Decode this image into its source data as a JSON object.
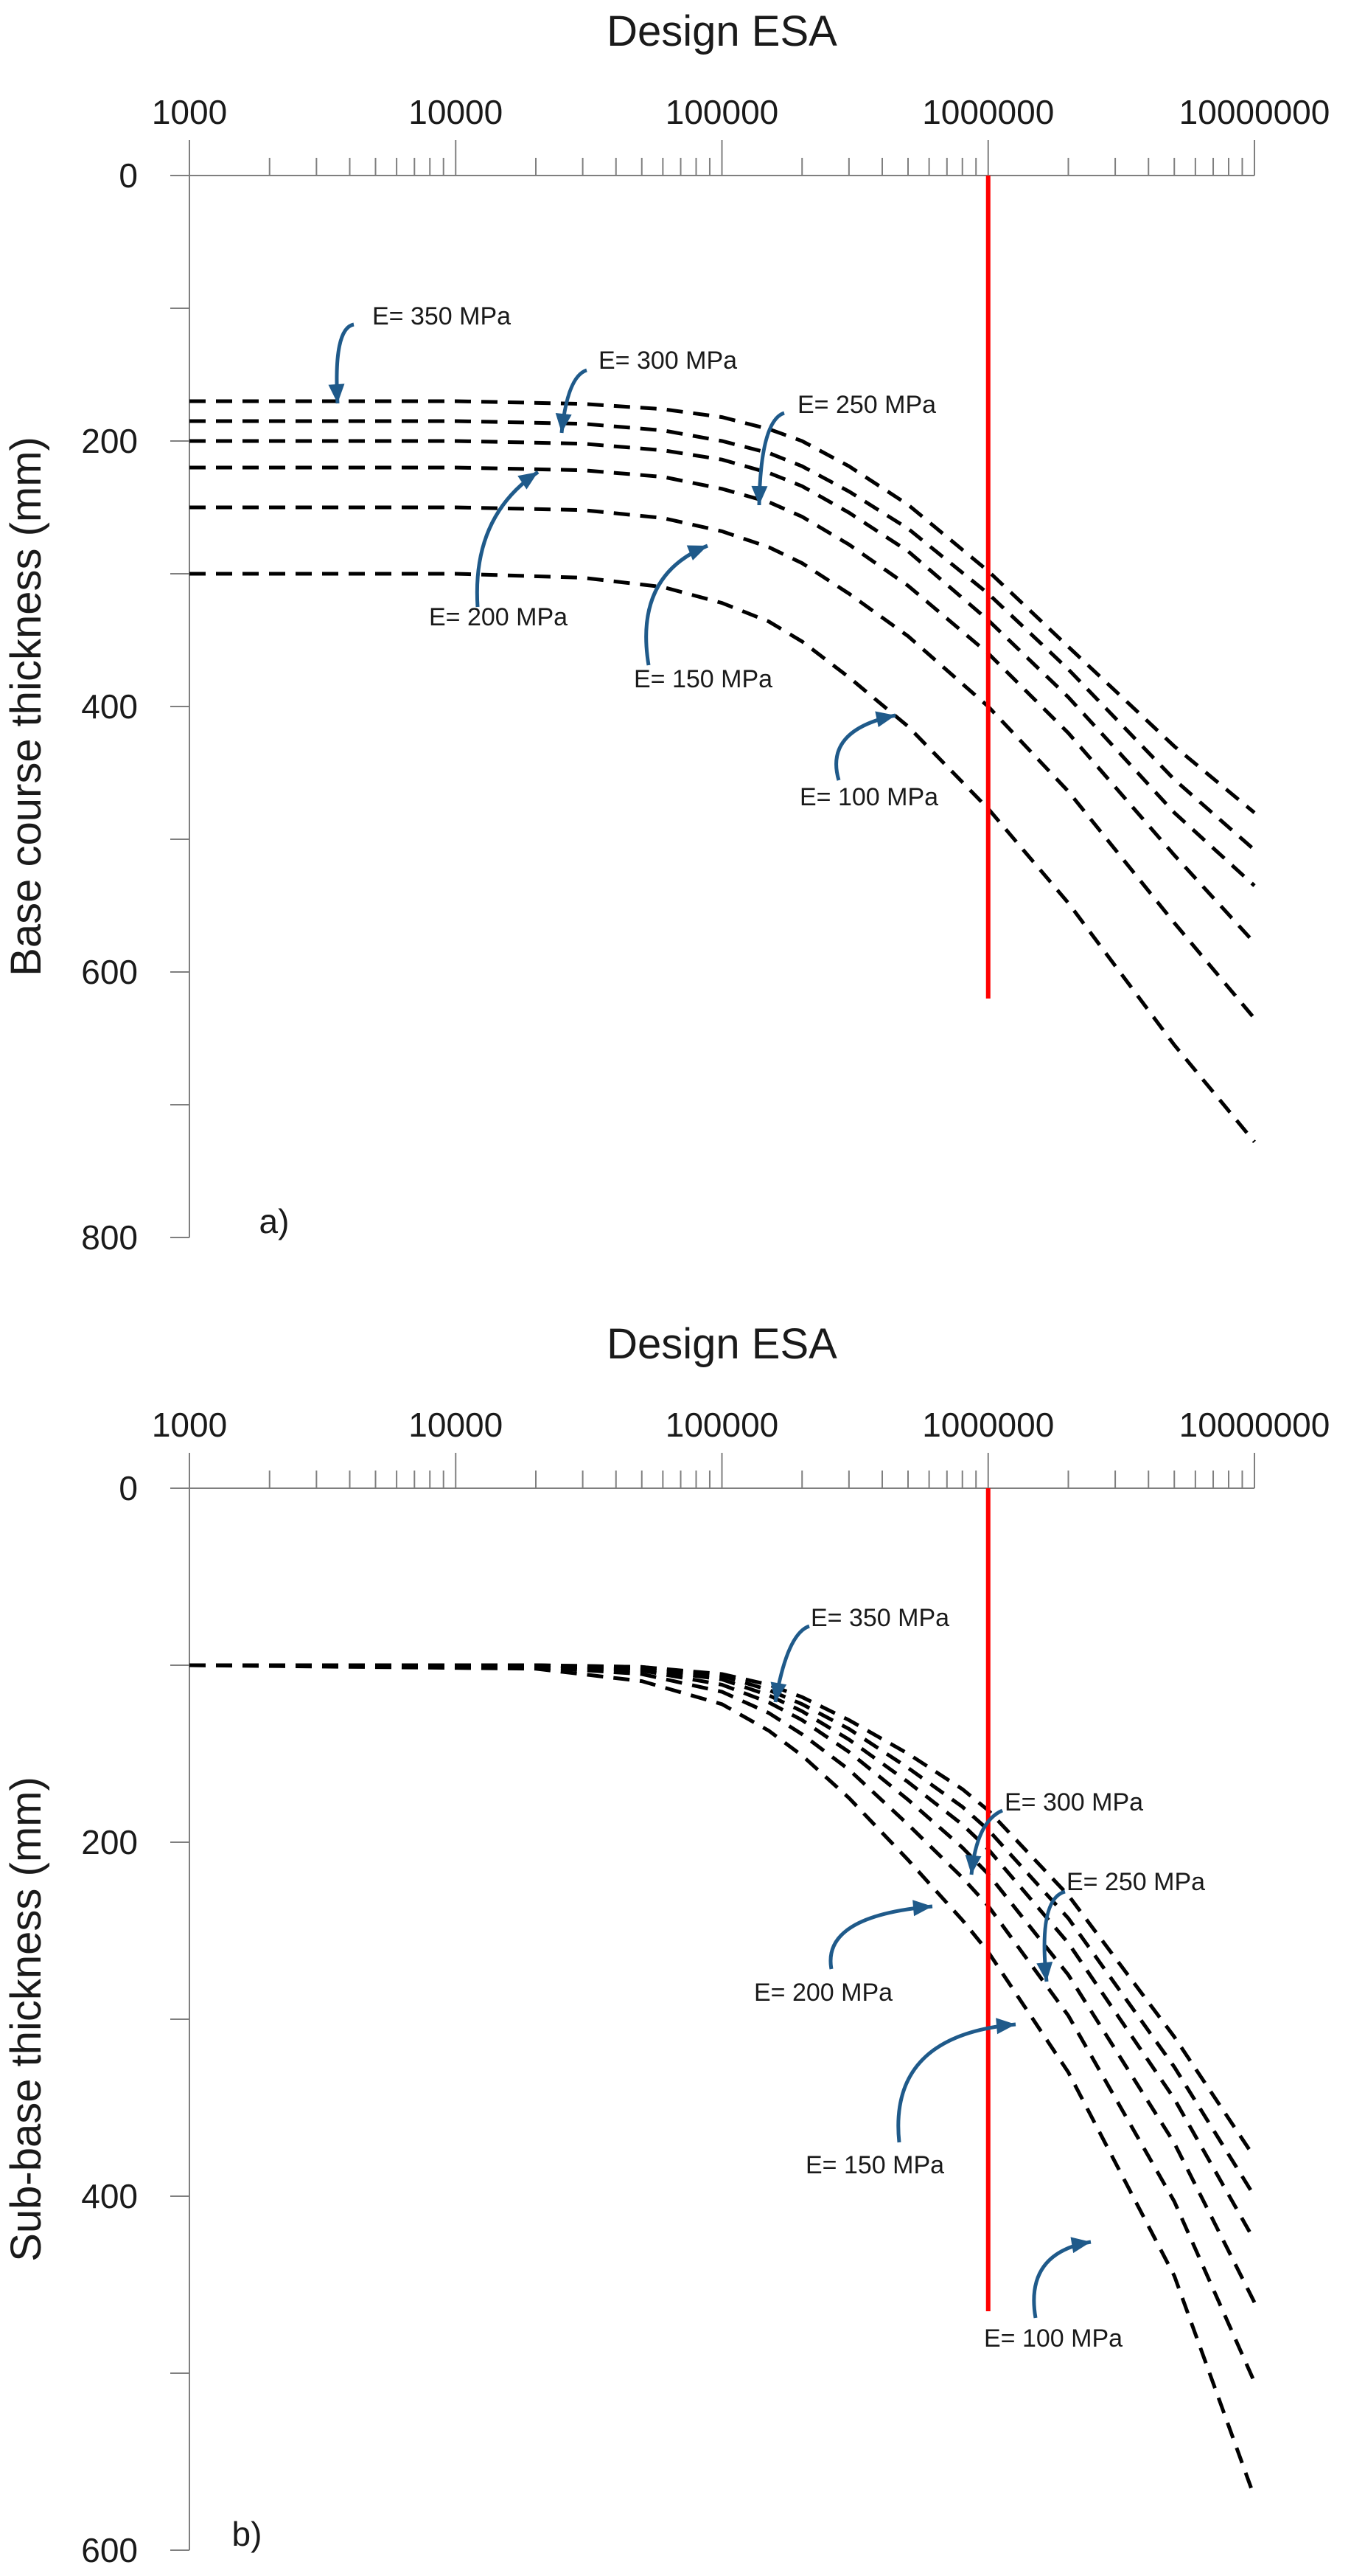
{
  "chart_data": [
    {
      "type": "line",
      "panel_label": "a)",
      "title": "Design ESA",
      "xlabel": "Design ESA",
      "ylabel": "Base course thickness (mm)",
      "x_scale": "log",
      "xlim": [
        1000,
        10000000
      ],
      "ylim": [
        0,
        800
      ],
      "y_inverted": true,
      "x_tick_labels": [
        "1000",
        "10000",
        "100000",
        "1000000",
        "10000000"
      ],
      "x_tick_values": [
        1000,
        10000,
        100000,
        1000000,
        10000000
      ],
      "y_tick_labels": [
        "0",
        "200",
        "400",
        "600",
        "800"
      ],
      "y_tick_values": [
        0,
        200,
        400,
        600,
        800
      ],
      "reference_line": {
        "x": 1000000,
        "y_range": [
          0,
          620
        ],
        "color": "#ff0000"
      },
      "series": [
        {
          "name": "E= 350 MPa",
          "x": [
            1000,
            10000,
            30000,
            60000,
            100000,
            150000,
            200000,
            300000,
            500000,
            1000000,
            2000000,
            5000000,
            10000000
          ],
          "y": [
            170,
            170,
            172,
            176,
            182,
            191,
            200,
            219,
            248,
            298,
            355,
            430,
            480
          ]
        },
        {
          "name": "E= 300 MPa",
          "x": [
            1000,
            10000,
            30000,
            60000,
            100000,
            150000,
            200000,
            300000,
            500000,
            1000000,
            2000000,
            5000000,
            10000000
          ],
          "y": [
            185,
            185,
            187,
            192,
            200,
            209,
            219,
            238,
            266,
            315,
            372,
            455,
            508
          ]
        },
        {
          "name": "E= 250 MPa",
          "x": [
            1000,
            10000,
            30000,
            60000,
            100000,
            150000,
            200000,
            300000,
            500000,
            1000000,
            2000000,
            5000000,
            10000000
          ],
          "y": [
            200,
            200,
            202,
            207,
            214,
            224,
            234,
            254,
            283,
            335,
            393,
            480,
            535
          ]
        },
        {
          "name": "E= 200 MPa",
          "x": [
            1000,
            10000,
            30000,
            60000,
            100000,
            150000,
            200000,
            300000,
            500000,
            1000000,
            2000000,
            5000000,
            10000000
          ],
          "y": [
            220,
            220,
            222,
            227,
            236,
            246,
            257,
            278,
            309,
            360,
            420,
            512,
            578
          ]
        },
        {
          "name": "E= 150 MPa",
          "x": [
            1000,
            10000,
            30000,
            60000,
            100000,
            150000,
            200000,
            300000,
            500000,
            1000000,
            2000000,
            5000000,
            10000000
          ],
          "y": [
            250,
            250,
            252,
            258,
            268,
            280,
            292,
            315,
            347,
            400,
            464,
            563,
            635
          ]
        },
        {
          "name": "E= 100 MPa",
          "x": [
            1000,
            10000,
            30000,
            60000,
            100000,
            150000,
            200000,
            300000,
            500000,
            1000000,
            2000000,
            5000000,
            10000000
          ],
          "y": [
            300,
            300,
            303,
            310,
            322,
            336,
            351,
            378,
            415,
            477,
            548,
            655,
            728
          ]
        }
      ],
      "annotations": [
        {
          "text": "E= 350 MPa",
          "series": "E= 350 MPa"
        },
        {
          "text": "E= 300 MPa",
          "series": "E= 300 MPa"
        },
        {
          "text": "E= 250 MPa",
          "series": "E= 250 MPa"
        },
        {
          "text": "E= 200 MPa",
          "series": "E= 200 MPa"
        },
        {
          "text": "E= 150 MPa",
          "series": "E= 150 MPa"
        },
        {
          "text": "E= 100 MPa",
          "series": "E= 100 MPa"
        }
      ]
    },
    {
      "type": "line",
      "panel_label": "b)",
      "title": "Design ESA",
      "xlabel": "Design ESA",
      "ylabel": "Sub-base thickness (mm)",
      "x_scale": "log",
      "xlim": [
        1000,
        10000000
      ],
      "ylim": [
        0,
        600
      ],
      "y_inverted": true,
      "x_tick_labels": [
        "1000",
        "10000",
        "100000",
        "1000000",
        "10000000"
      ],
      "x_tick_values": [
        1000,
        10000,
        100000,
        1000000,
        10000000
      ],
      "y_tick_labels": [
        "0",
        "200",
        "400",
        "600"
      ],
      "y_tick_values": [
        0,
        200,
        400,
        600
      ],
      "reference_line": {
        "x": 1000000,
        "y_range": [
          0,
          465
        ],
        "color": "#ff0000"
      },
      "series": [
        {
          "name": "E= 350 MPa",
          "x": [
            1000,
            20000,
            50000,
            100000,
            150000,
            200000,
            300000,
            500000,
            800000,
            1000000,
            2000000,
            5000000,
            10000000
          ],
          "y": [
            100,
            100,
            101,
            105,
            111,
            118,
            131,
            150,
            170,
            182,
            230,
            310,
            378
          ]
        },
        {
          "name": "E= 300 MPa",
          "x": [
            1000,
            20000,
            50000,
            100000,
            150000,
            200000,
            300000,
            500000,
            800000,
            1000000,
            2000000,
            5000000,
            10000000
          ],
          "y": [
            100,
            100,
            101,
            106,
            114,
            122,
            136,
            158,
            180,
            193,
            243,
            327,
            400
          ]
        },
        {
          "name": "E= 250 MPa",
          "x": [
            1000,
            20000,
            50000,
            100000,
            150000,
            200000,
            300000,
            500000,
            800000,
            1000000,
            2000000,
            5000000,
            10000000
          ],
          "y": [
            100,
            100,
            102,
            108,
            117,
            126,
            142,
            166,
            190,
            204,
            257,
            345,
            425
          ]
        },
        {
          "name": "E= 200 MPa",
          "x": [
            1000,
            20000,
            50000,
            100000,
            150000,
            200000,
            300000,
            500000,
            800000,
            1000000,
            2000000,
            5000000,
            10000000
          ],
          "y": [
            100,
            100,
            103,
            111,
            121,
            131,
            149,
            176,
            203,
            218,
            275,
            370,
            460
          ]
        },
        {
          "name": "E= 150 MPa",
          "x": [
            1000,
            20000,
            50000,
            100000,
            150000,
            200000,
            300000,
            500000,
            800000,
            1000000,
            2000000,
            5000000,
            10000000
          ],
          "y": [
            100,
            101,
            105,
            115,
            127,
            139,
            159,
            190,
            220,
            236,
            298,
            403,
            505
          ]
        },
        {
          "name": "E= 100 MPa",
          "x": [
            1000,
            20000,
            50000,
            100000,
            150000,
            200000,
            300000,
            500000,
            800000,
            1000000,
            2000000,
            5000000,
            10000000
          ],
          "y": [
            100,
            102,
            109,
            122,
            137,
            151,
            175,
            210,
            244,
            262,
            330,
            445,
            570
          ]
        }
      ],
      "annotations": [
        {
          "text": "E= 350 MPa",
          "series": "E= 350 MPa"
        },
        {
          "text": "E= 300 MPa",
          "series": "E= 300 MPa"
        },
        {
          "text": "E= 250 MPa",
          "series": "E= 250 MPa"
        },
        {
          "text": "E= 200 MPa",
          "series": "E= 200 MPa"
        },
        {
          "text": "E= 150 MPa",
          "series": "E= 150 MPa"
        },
        {
          "text": "E= 100 MPa",
          "series": "E= 100 MPa"
        }
      ]
    }
  ]
}
